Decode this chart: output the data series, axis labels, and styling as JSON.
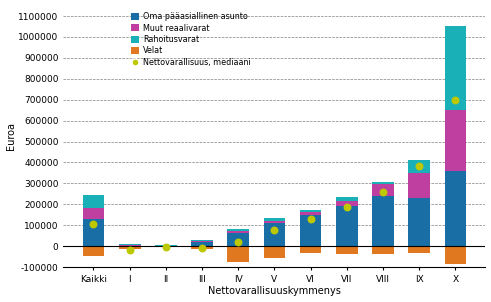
{
  "categories": [
    "Kaikki",
    "I",
    "II",
    "III",
    "IV",
    "V",
    "VI",
    "VII",
    "VIII",
    "IX",
    "X"
  ],
  "oma_asunto": [
    130000,
    2000,
    1000,
    18000,
    65000,
    110000,
    150000,
    190000,
    240000,
    230000,
    360000
  ],
  "muut_reaalivarat": [
    50000,
    4000,
    1000,
    7000,
    8000,
    12000,
    15000,
    25000,
    55000,
    120000,
    290000
  ],
  "rahoitusvarat": [
    65000,
    4000,
    1000,
    6000,
    8000,
    12000,
    10000,
    18000,
    10000,
    60000,
    400000
  ],
  "velat": [
    -45000,
    -13000,
    -2000,
    -12000,
    -75000,
    -55000,
    -35000,
    -40000,
    -40000,
    -35000,
    -85000
  ],
  "mediaani": [
    105000,
    -18000,
    -5000,
    -8000,
    22000,
    75000,
    130000,
    185000,
    260000,
    385000,
    700000
  ],
  "color_asunto": "#1a6ea6",
  "color_muut": "#bf3fa0",
  "color_rahoitus": "#1ab0b8",
  "color_velat": "#e07820",
  "color_mediaani": "#bec800",
  "ylabel": "Euroa",
  "xlabel": "Nettovarallisuuskymmenys",
  "ylim": [
    -100000,
    1150000
  ],
  "yticks": [
    -100000,
    0,
    100000,
    200000,
    300000,
    400000,
    500000,
    600000,
    700000,
    800000,
    900000,
    1000000,
    1100000
  ],
  "ytick_labels": [
    "-100000",
    "0",
    "100000",
    "200000",
    "300000",
    "400000",
    "500000",
    "600000",
    "700000",
    "800000",
    "900000",
    "1000000",
    "1100000"
  ],
  "legend_labels": [
    "Oma pääasiallinen asunto",
    "Muut reaalivarat",
    "Rahoitusvarat",
    "Velat",
    "Nettovarallisuus, mediaani"
  ]
}
